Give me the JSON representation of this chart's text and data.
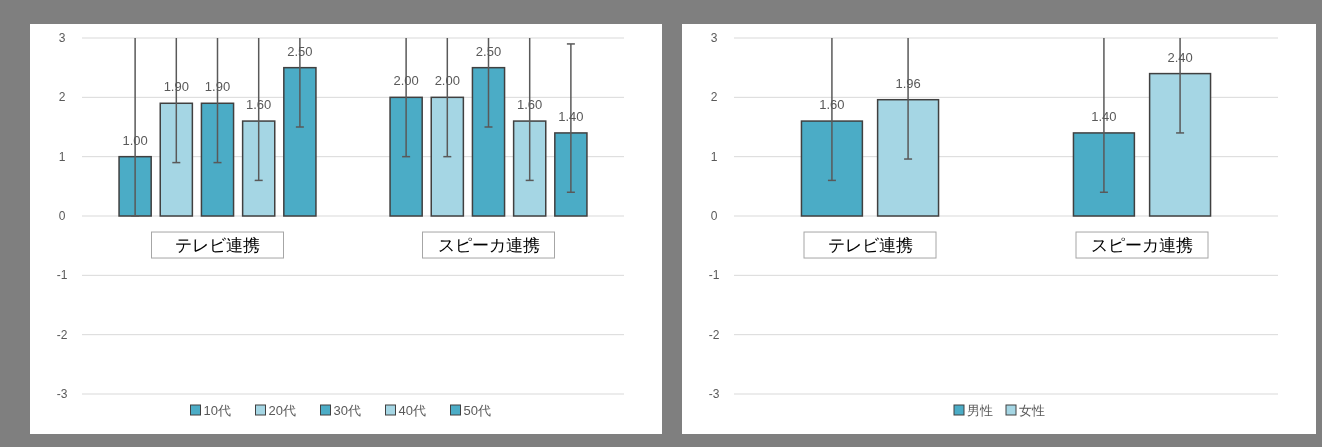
{
  "chart_data": [
    {
      "type": "bar",
      "categories": [
        "テレビ連携",
        "スピーカ連携"
      ],
      "ylim": [
        -3,
        3
      ],
      "yticks": [
        -3,
        -2,
        -1,
        0,
        1,
        2,
        3
      ],
      "grid": "y",
      "legend": "bottom",
      "series": [
        {
          "name": "10代",
          "color": "#4bacc6",
          "values": [
            1.0,
            2.0
          ],
          "value_labels": [
            "1.00",
            "2.00"
          ],
          "errors": [
            [
              0,
              3
            ],
            [
              1.0,
              3
            ]
          ]
        },
        {
          "name": "20代",
          "color": "#a5d6e4",
          "values": [
            1.9,
            2.0
          ],
          "value_labels": [
            "1.90",
            "2.00"
          ],
          "errors": [
            [
              0.9,
              3
            ],
            [
              1.0,
              3
            ]
          ]
        },
        {
          "name": "30代",
          "color": "#4bacc6",
          "values": [
            1.9,
            2.5
          ],
          "value_labels": [
            "1.90",
            "2.50"
          ],
          "errors": [
            [
              0.9,
              3
            ],
            [
              1.5,
              3
            ]
          ]
        },
        {
          "name": "40代",
          "color": "#a5d6e4",
          "values": [
            1.6,
            1.6
          ],
          "value_labels": [
            "1.60",
            "1.60"
          ],
          "errors": [
            [
              0.6,
              3
            ],
            [
              0.6,
              3
            ]
          ]
        },
        {
          "name": "50代",
          "color": "#4bacc6",
          "values": [
            2.5,
            1.4
          ],
          "value_labels": [
            "2.50",
            "1.40"
          ],
          "errors": [
            [
              1.5,
              3
            ],
            [
              0.4,
              2.9
            ]
          ]
        }
      ]
    },
    {
      "type": "bar",
      "categories": [
        "テレビ連携",
        "スピーカ連携"
      ],
      "ylim": [
        -3,
        3
      ],
      "yticks": [
        -3,
        -2,
        -1,
        0,
        1,
        2,
        3
      ],
      "grid": "y",
      "legend": "bottom",
      "series": [
        {
          "name": "男性",
          "color": "#4bacc6",
          "values": [
            1.6,
            1.4
          ],
          "value_labels": [
            "1.60",
            "1.40"
          ],
          "errors": [
            [
              0.6,
              3
            ],
            [
              0.4,
              3
            ]
          ]
        },
        {
          "name": "女性",
          "color": "#a5d6e4",
          "values": [
            1.96,
            2.4
          ],
          "value_labels": [
            "1.96",
            "2.40"
          ],
          "errors": [
            [
              0.96,
              3
            ],
            [
              1.4,
              3
            ]
          ]
        }
      ]
    }
  ]
}
